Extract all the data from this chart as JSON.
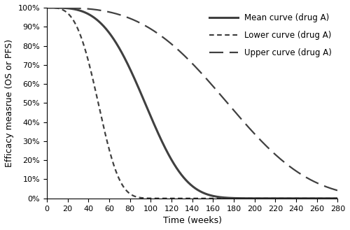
{
  "title": "",
  "xlabel": "Time (weeks)",
  "ylabel": "Efficacy measrue (OS or PFS)",
  "xlim": [
    0,
    280
  ],
  "ylim": [
    0,
    1.0
  ],
  "xticks": [
    0,
    20,
    40,
    60,
    80,
    100,
    120,
    140,
    160,
    180,
    200,
    220,
    240,
    260,
    280
  ],
  "yticks": [
    0.0,
    0.1,
    0.2,
    0.3,
    0.4,
    0.5,
    0.6,
    0.7,
    0.8,
    0.9,
    1.0
  ],
  "mean_label": "Mean curve (drug A)",
  "lower_label": "Lower curve (drug A)",
  "upper_label": "Upper curve (drug A)",
  "mean_color": "#404040",
  "lower_color": "#404040",
  "upper_color": "#404040",
  "mean_lw": 2.2,
  "lower_lw": 1.6,
  "upper_lw": 1.6,
  "mean_scale": 105,
  "mean_shape": 3.5,
  "lower_scale": 55,
  "lower_shape": 3.5,
  "upper_scale": 195,
  "upper_shape": 3.2,
  "background_color": "#ffffff",
  "legend_fontsize": 8.5,
  "axis_fontsize": 9,
  "tick_fontsize": 8,
  "lower_dash": [
    3,
    2
  ],
  "upper_dash": [
    9,
    4
  ]
}
